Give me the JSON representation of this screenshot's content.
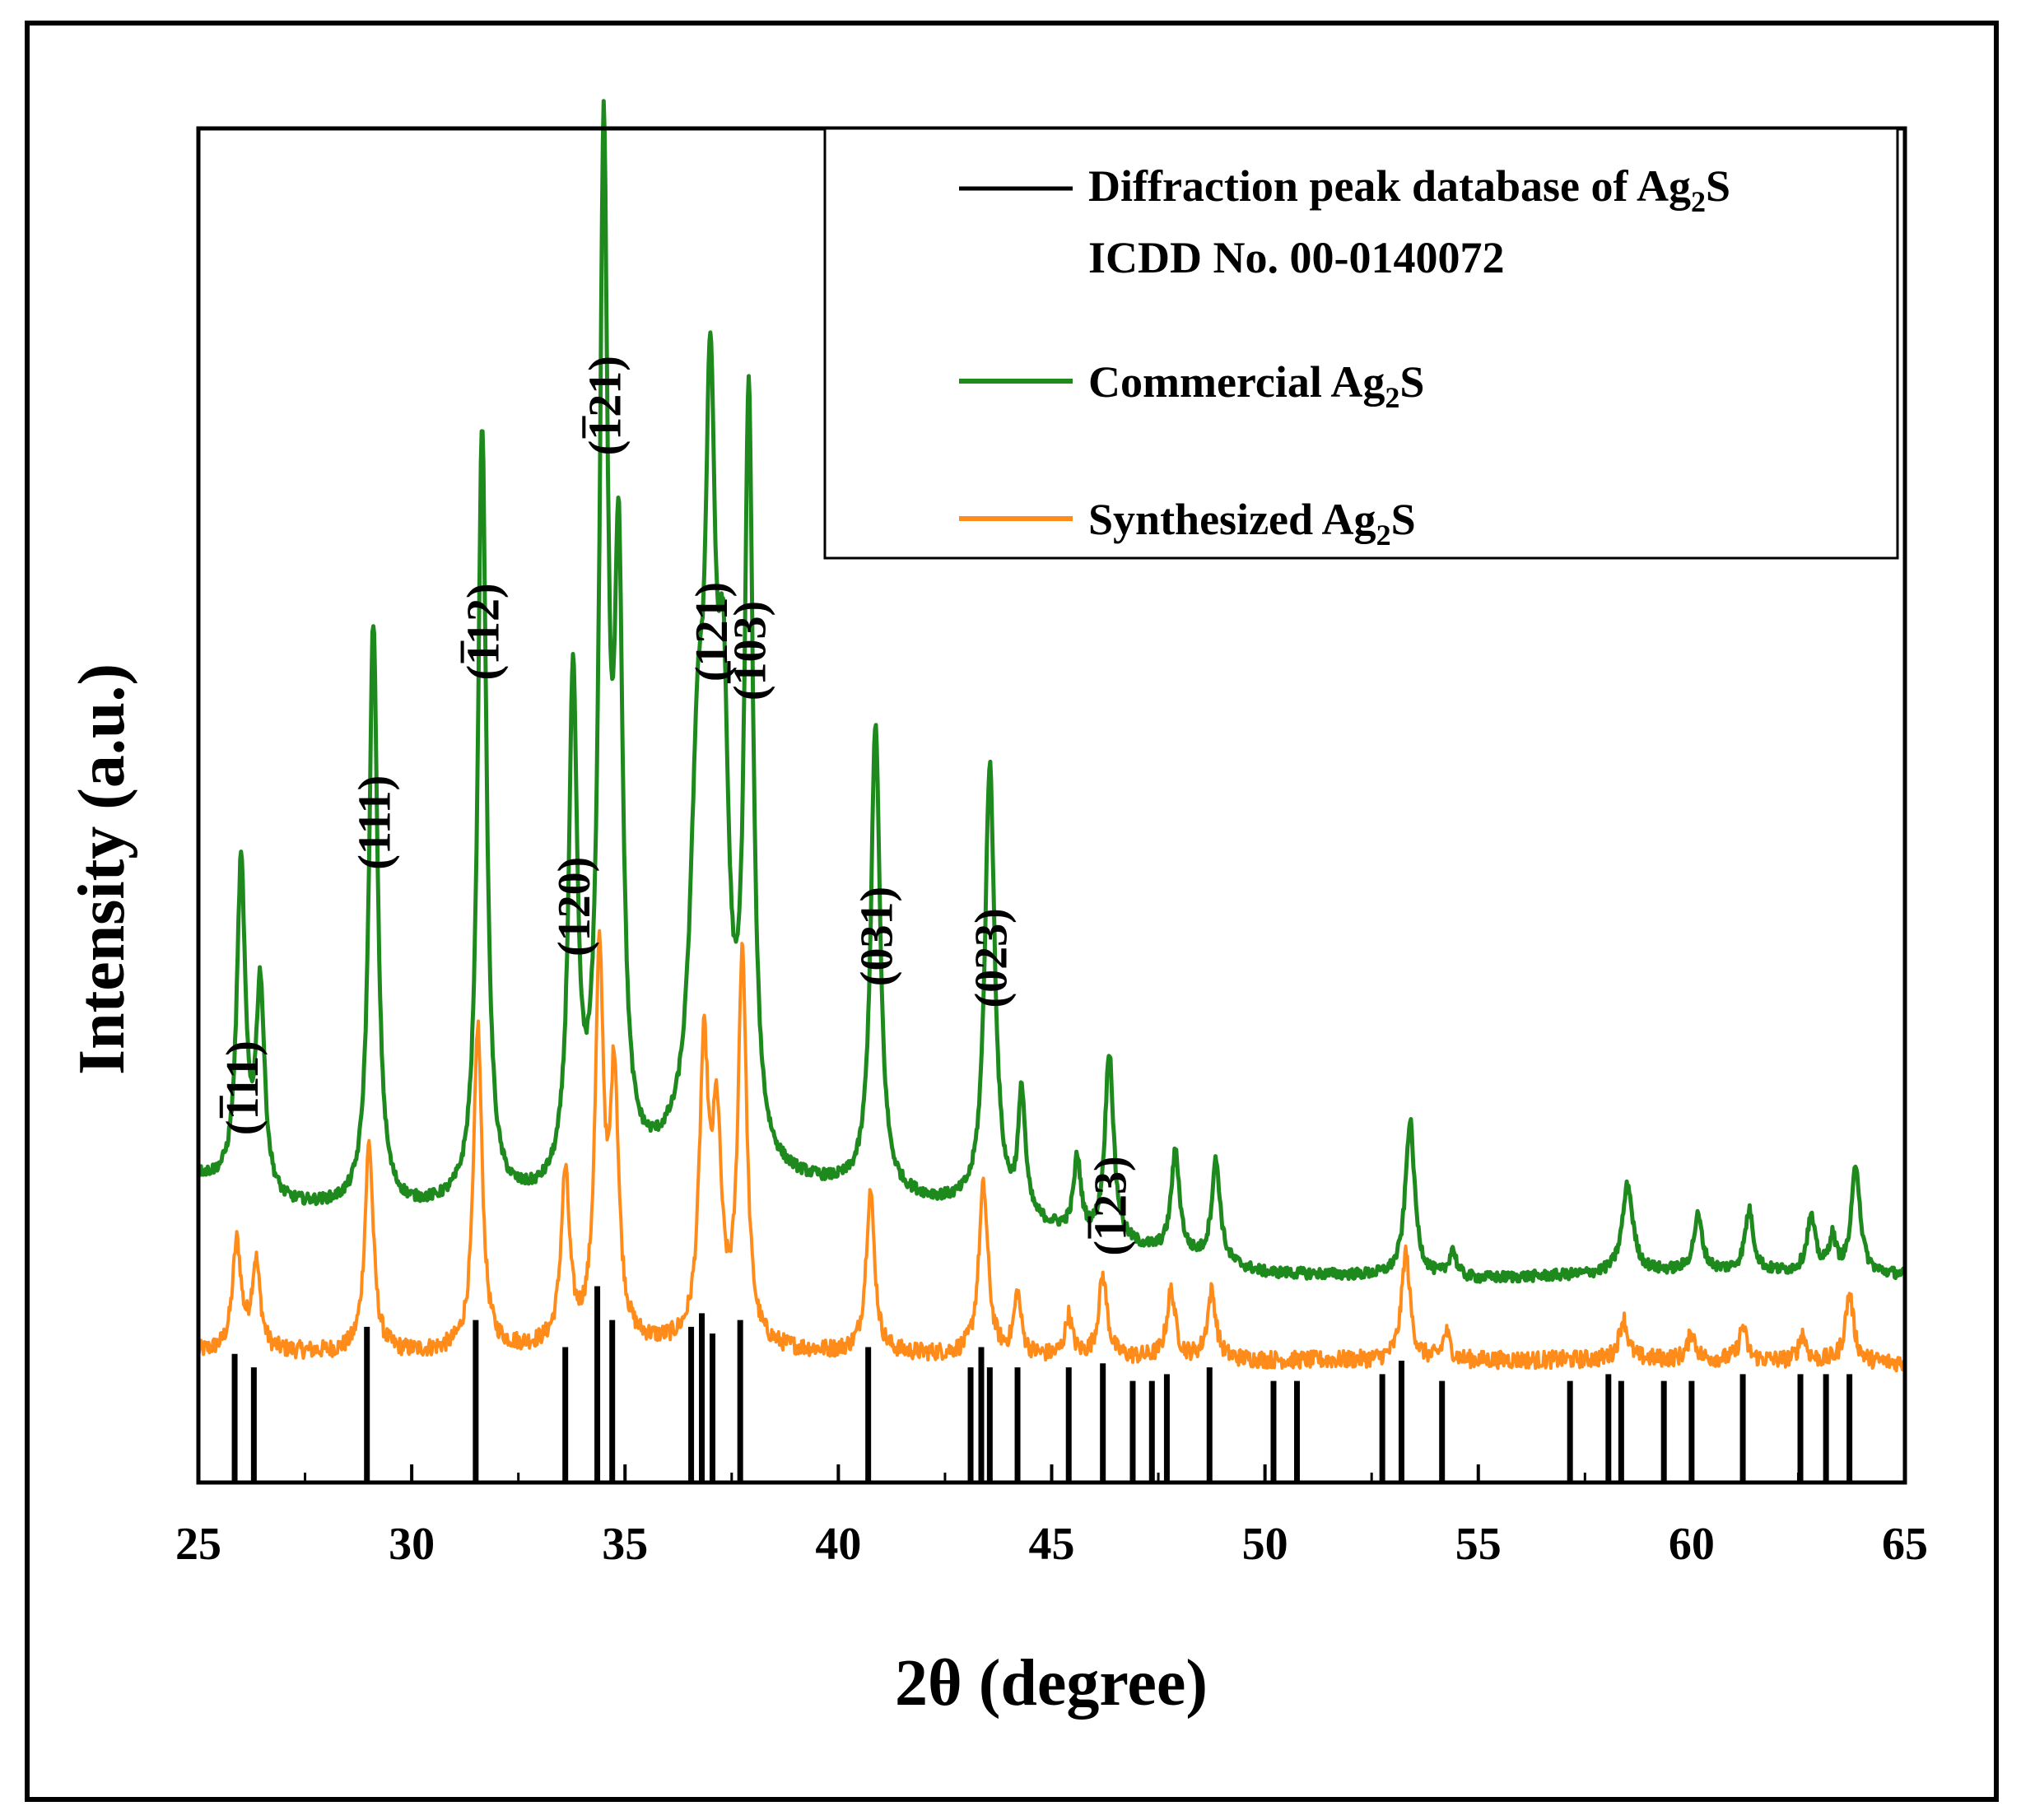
{
  "chart_data": {
    "type": "line",
    "title": "",
    "xlabel": "2θ (degree)",
    "ylabel": "Intensity (a.u.)",
    "xlim": [
      25,
      65
    ],
    "xticks": [
      25,
      30,
      35,
      40,
      45,
      50,
      55,
      60,
      65
    ],
    "ylim": [
      0,
      100
    ],
    "y_ticks_shown": false,
    "grid": false,
    "legend_position": "top-right",
    "legend": {
      "database_line1": "Diffraction peak database of Ag",
      "database_sub": "2",
      "database_tail": "S",
      "database_line2": "ICDD No. 00-0140072",
      "commercial_main": "Commercial Ag",
      "commercial_sub": "2",
      "commercial_tail": "S",
      "synthesized_main": "Synthesized Ag",
      "synthesized_sub": "2",
      "synthesized_tail": "S"
    },
    "colors": {
      "database": "#000000",
      "commercial": "#1e8a1e",
      "synthesized": "#ff8c1a"
    },
    "series": [
      {
        "name": "Commercial Ag2S",
        "key": "commercial",
        "baseline": [
          [
            25,
            22.5
          ],
          [
            27,
            20.3
          ],
          [
            30,
            20.0
          ],
          [
            33,
            20.5
          ],
          [
            36,
            22.7
          ],
          [
            40,
            21.5
          ],
          [
            43,
            20.1
          ],
          [
            46,
            17.8
          ],
          [
            50,
            15.4
          ],
          [
            55,
            15.0
          ],
          [
            60,
            15.6
          ],
          [
            65,
            15.3
          ]
        ],
        "peaks": [
          {
            "x": 26.0,
            "h": 23.8,
            "w": 0.12
          },
          {
            "x": 26.45,
            "h": 15.2,
            "w": 0.12
          },
          {
            "x": 29.1,
            "h": 43.2,
            "w": 0.12
          },
          {
            "x": 31.65,
            "h": 57.5,
            "w": 0.12
          },
          {
            "x": 33.78,
            "h": 36.8,
            "w": 0.12
          },
          {
            "x": 34.5,
            "h": 74.0,
            "w": 0.12
          },
          {
            "x": 34.85,
            "h": 42.0,
            "w": 0.12
          },
          {
            "x": 36.7,
            "h": 25.0,
            "w": 0.2
          },
          {
            "x": 37.0,
            "h": 48.0,
            "w": 0.15
          },
          {
            "x": 37.3,
            "h": 28.0,
            "w": 0.15
          },
          {
            "x": 37.9,
            "h": 55.5,
            "w": 0.12
          },
          {
            "x": 40.87,
            "h": 34.5,
            "w": 0.13
          },
          {
            "x": 43.55,
            "h": 33.0,
            "w": 0.14
          },
          {
            "x": 44.3,
            "h": 9.0,
            "w": 0.1
          },
          {
            "x": 45.6,
            "h": 5.5,
            "w": 0.1
          },
          {
            "x": 46.35,
            "h": 14.0,
            "w": 0.12
          },
          {
            "x": 47.9,
            "h": 7.5,
            "w": 0.12
          },
          {
            "x": 48.85,
            "h": 7.5,
            "w": 0.12
          },
          {
            "x": 53.4,
            "h": 11.5,
            "w": 0.13
          },
          {
            "x": 54.4,
            "h": 2.0,
            "w": 0.1
          },
          {
            "x": 58.5,
            "h": 6.5,
            "w": 0.15
          },
          {
            "x": 60.15,
            "h": 4.0,
            "w": 0.12
          },
          {
            "x": 61.35,
            "h": 4.5,
            "w": 0.12
          },
          {
            "x": 62.8,
            "h": 4.0,
            "w": 0.12
          },
          {
            "x": 63.3,
            "h": 2.5,
            "w": 0.1
          },
          {
            "x": 63.85,
            "h": 8.0,
            "w": 0.12
          }
        ]
      },
      {
        "name": "Synthesized Ag2S",
        "key": "synthesized",
        "baseline": [
          [
            25,
            9.6
          ],
          [
            30,
            9.5
          ],
          [
            35,
            10.0
          ],
          [
            40,
            9.5
          ],
          [
            45,
            9.2
          ],
          [
            50,
            9.0
          ],
          [
            55,
            9.0
          ],
          [
            60,
            9.1
          ],
          [
            65,
            8.8
          ]
        ],
        "peaks": [
          {
            "x": 25.9,
            "h": 8.0,
            "w": 0.12
          },
          {
            "x": 26.35,
            "h": 6.5,
            "w": 0.12
          },
          {
            "x": 29.0,
            "h": 15.5,
            "w": 0.12
          },
          {
            "x": 31.55,
            "h": 24.0,
            "w": 0.12
          },
          {
            "x": 33.6,
            "h": 12.5,
            "w": 0.12
          },
          {
            "x": 34.4,
            "h": 28.0,
            "w": 0.12
          },
          {
            "x": 34.75,
            "h": 19.0,
            "w": 0.12
          },
          {
            "x": 36.85,
            "h": 21.0,
            "w": 0.13
          },
          {
            "x": 37.15,
            "h": 15.0,
            "w": 0.13
          },
          {
            "x": 37.75,
            "h": 29.0,
            "w": 0.12
          },
          {
            "x": 40.75,
            "h": 12.0,
            "w": 0.12
          },
          {
            "x": 43.4,
            "h": 12.5,
            "w": 0.13
          },
          {
            "x": 44.2,
            "h": 4.5,
            "w": 0.1
          },
          {
            "x": 45.4,
            "h": 3.0,
            "w": 0.1
          },
          {
            "x": 46.2,
            "h": 6.0,
            "w": 0.12
          },
          {
            "x": 47.8,
            "h": 5.0,
            "w": 0.12
          },
          {
            "x": 48.75,
            "h": 5.0,
            "w": 0.12
          },
          {
            "x": 53.3,
            "h": 8.0,
            "w": 0.12
          },
          {
            "x": 54.25,
            "h": 2.0,
            "w": 0.1
          },
          {
            "x": 58.4,
            "h": 3.0,
            "w": 0.12
          },
          {
            "x": 60.0,
            "h": 2.0,
            "w": 0.1
          },
          {
            "x": 61.2,
            "h": 2.5,
            "w": 0.1
          },
          {
            "x": 62.6,
            "h": 2.0,
            "w": 0.1
          },
          {
            "x": 63.7,
            "h": 5.0,
            "w": 0.12
          }
        ]
      }
    ],
    "reference_peaks": [
      {
        "x": 25.85,
        "h": 9.5
      },
      {
        "x": 26.3,
        "h": 8.5
      },
      {
        "x": 28.95,
        "h": 11.5
      },
      {
        "x": 31.5,
        "h": 12.0
      },
      {
        "x": 33.6,
        "h": 10.0
      },
      {
        "x": 34.35,
        "h": 14.5
      },
      {
        "x": 34.7,
        "h": 12.0
      },
      {
        "x": 36.55,
        "h": 11.5
      },
      {
        "x": 36.8,
        "h": 12.5
      },
      {
        "x": 37.05,
        "h": 11.0
      },
      {
        "x": 37.7,
        "h": 12.0
      },
      {
        "x": 40.7,
        "h": 10.0
      },
      {
        "x": 43.1,
        "h": 8.5
      },
      {
        "x": 43.35,
        "h": 10.0
      },
      {
        "x": 43.55,
        "h": 8.5
      },
      {
        "x": 44.2,
        "h": 8.5
      },
      {
        "x": 45.4,
        "h": 8.5
      },
      {
        "x": 46.2,
        "h": 8.8
      },
      {
        "x": 46.9,
        "h": 7.5
      },
      {
        "x": 47.35,
        "h": 7.5
      },
      {
        "x": 47.7,
        "h": 8.0
      },
      {
        "x": 48.7,
        "h": 8.5
      },
      {
        "x": 50.2,
        "h": 7.5
      },
      {
        "x": 50.75,
        "h": 7.5
      },
      {
        "x": 52.75,
        "h": 8.0
      },
      {
        "x": 53.2,
        "h": 9.0
      },
      {
        "x": 54.15,
        "h": 7.5
      },
      {
        "x": 57.15,
        "h": 7.5
      },
      {
        "x": 58.05,
        "h": 8.0
      },
      {
        "x": 58.35,
        "h": 7.5
      },
      {
        "x": 59.35,
        "h": 7.5
      },
      {
        "x": 60.0,
        "h": 7.5
      },
      {
        "x": 61.2,
        "h": 8.0
      },
      {
        "x": 62.55,
        "h": 8.0
      },
      {
        "x": 63.15,
        "h": 8.0
      },
      {
        "x": 63.7,
        "h": 8.0
      }
    ],
    "annotations": [
      {
        "label": "(111)",
        "bar": true,
        "x": 26.0,
        "y": 25.4
      },
      {
        "label": "(111)",
        "bar": false,
        "x": 29.1,
        "y": 45.0
      },
      {
        "label": "(112)",
        "bar": true,
        "x": 31.65,
        "y": 59.0
      },
      {
        "label": "(120)",
        "bar": false,
        "x": 33.78,
        "y": 38.6
      },
      {
        "label": "(121)",
        "bar": true,
        "x": 34.5,
        "y": 75.6
      },
      {
        "label": "(121)",
        "bar": false,
        "x": 37.0,
        "y": 58.9
      },
      {
        "label": "(103)",
        "bar": true,
        "x": 37.9,
        "y": 57.5
      },
      {
        "label": "(031)",
        "bar": false,
        "x": 40.87,
        "y": 36.4
      },
      {
        "label": "(023)",
        "bar": false,
        "x": 43.55,
        "y": 34.8
      },
      {
        "label": "(123)",
        "bar": true,
        "x": 46.35,
        "y": 16.5
      }
    ]
  }
}
